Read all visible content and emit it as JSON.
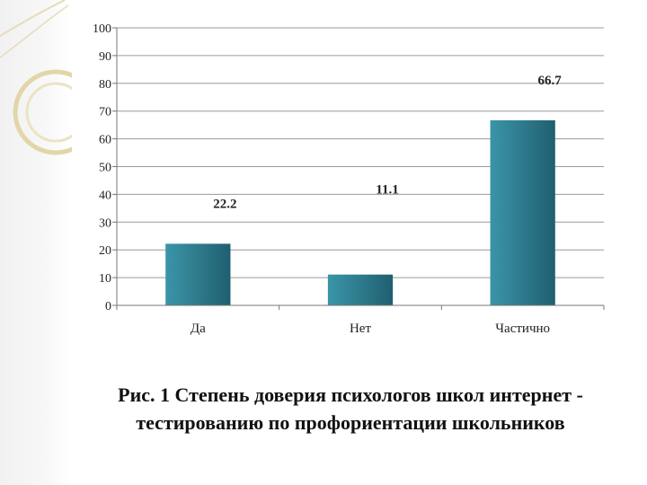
{
  "caption": "Рис. 1 Степень доверия психологов школ интернет - тестированию по профориентации школьников",
  "chart_data": {
    "type": "bar",
    "categories": [
      "Да",
      "Нет",
      "Частично"
    ],
    "values": [
      22.2,
      11.1,
      66.7
    ],
    "data_labels": [
      "22.2",
      "11.1",
      "66.7"
    ],
    "ylim": [
      0,
      100
    ],
    "yticks": [
      0,
      10,
      20,
      30,
      40,
      50,
      60,
      70,
      80,
      90,
      100
    ],
    "grid": true,
    "legend": "none",
    "bar_color": "#2f7d8f",
    "title": "",
    "xlabel": "",
    "ylabel": ""
  }
}
